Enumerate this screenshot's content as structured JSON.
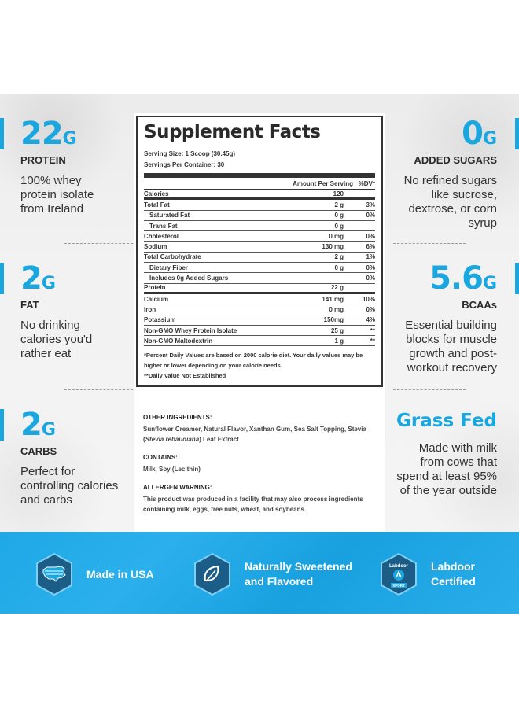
{
  "left_stats": [
    {
      "number": "22",
      "unit": "G",
      "label": "PROTEIN",
      "desc": [
        "100% whey",
        "protein isolate",
        "from Ireland"
      ]
    },
    {
      "number": "2",
      "unit": "G",
      "label": "FAT",
      "desc": [
        "No drinking",
        "calories you'd",
        "rather eat"
      ]
    },
    {
      "number": "2",
      "unit": "G",
      "label": "CARBS",
      "desc": [
        "Perfect for",
        "controlling calories",
        "and carbs"
      ]
    }
  ],
  "right_stats": [
    {
      "number": "0",
      "unit": "G",
      "label": "ADDED SUGARS",
      "desc": [
        "No refined sugars",
        "like sucrose,",
        "dextrose, or corn",
        "syrup"
      ]
    },
    {
      "number": "5.6",
      "unit": "G",
      "label": "BCAAs",
      "desc": [
        "Essential building",
        "blocks for muscle",
        "growth and post-",
        "workout recovery"
      ]
    },
    {
      "number": "Grass Fed",
      "unit": "",
      "label": "",
      "desc": [
        "Made with milk",
        "from cows that",
        "spend at least 95%",
        "of the year outside"
      ]
    }
  ],
  "facts": {
    "title": "Supplement Facts",
    "serving_size": "Serving Size: 1 Scoop (30.45g)",
    "servings_per_container": "Servings Per Container: 30",
    "header_amount": "Amount Per Serving",
    "header_dv": "%DV*",
    "rows": [
      {
        "name": "Calories",
        "amount": "120",
        "dv": ""
      },
      {
        "name": "Total Fat",
        "amount": "2 g",
        "dv": "3%"
      },
      {
        "name": "Saturated Fat",
        "amount": "0 g",
        "dv": "0%"
      },
      {
        "name": "Trans Fat",
        "amount": "0 g",
        "dv": ""
      },
      {
        "name": "Cholesterol",
        "amount": "0 mg",
        "dv": "0%"
      },
      {
        "name": "Sodium",
        "amount": "130 mg",
        "dv": "6%"
      },
      {
        "name": "Total Carbohydrate",
        "amount": "2 g",
        "dv": "1%"
      },
      {
        "name": "Dietary Fiber",
        "amount": "0 g",
        "dv": "0%"
      },
      {
        "name": "Includes 0g Added Sugars",
        "amount": "",
        "dv": "0%"
      },
      {
        "name": "Protein",
        "amount": "22 g",
        "dv": ""
      },
      {
        "name": "Calcium",
        "amount": "141 mg",
        "dv": "10%"
      },
      {
        "name": "Iron",
        "amount": "0 mg",
        "dv": "0%"
      },
      {
        "name": "Potassium",
        "amount": "150mg",
        "dv": "4%"
      },
      {
        "name": "Non-GMO Whey Protein Isolate",
        "amount": "25 g",
        "dv": "**"
      },
      {
        "name": "Non-GMO Maltodextrin",
        "amount": "1 g",
        "dv": "**"
      }
    ],
    "note1": "*Percent Daily Values are based on 2000 calorie diet. Your daily values may be higher or lower depending on your calorie needs.",
    "note2": "**Daily Value Not Established"
  },
  "ingredients": {
    "other_heading": "OTHER INGREDIENTS:",
    "other_text_a": "Sunflower Creamer, Natural Flavor, Xanthan Gum, Sea Salt Topping, Stevia (",
    "other_text_italic": "Stevia rebaudiana",
    "other_text_b": ") Leaf Extract",
    "contains_heading": "CONTAINS:",
    "contains_text": "Milk, Soy (Lecithin)",
    "allergen_heading": "ALLERGEN WARNING:",
    "allergen_text": "This product was produced in a facility that may also process ingredients containing milk, eggs, tree nuts, wheat, and soybeans."
  },
  "features": [
    {
      "icon": "usa-map-icon",
      "lines": [
        "Made in USA"
      ]
    },
    {
      "icon": "leaf-icon",
      "lines": [
        "Naturally Sweetened",
        "and Flavored"
      ]
    },
    {
      "icon": "labdoor-badge-icon",
      "lines": [
        "Labdoor",
        "Certified"
      ],
      "badge_text": "Labdoor",
      "badge_sub": "SPORT"
    }
  ],
  "colors": {
    "accent": "#1aa6df",
    "band": "#1ea8e6",
    "hex_fill": "#1b5d87",
    "text": "#333333"
  }
}
